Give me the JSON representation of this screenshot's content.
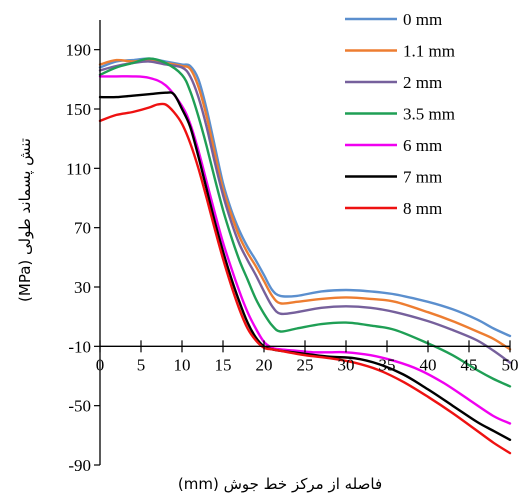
{
  "chart_data": {
    "type": "line",
    "xlabel": "فاصله از مرکز خط جوش (mm)",
    "ylabel": "تنش پسماند طولی (MPa)",
    "xlim": [
      0,
      50
    ],
    "ylim": [
      -90,
      210
    ],
    "x_ticks": [
      0,
      5,
      10,
      15,
      20,
      25,
      30,
      35,
      40,
      45,
      50
    ],
    "x_tick_labels": [
      "0",
      "5",
      "10",
      "15",
      "20",
      "25",
      "30",
      "35",
      "40",
      "45",
      "50"
    ],
    "y_ticks": [
      -90,
      -50,
      -10,
      30,
      70,
      110,
      150,
      190
    ],
    "y_tick_labels": [
      "-90",
      "-50",
      "-10",
      "30",
      "70",
      "110",
      "150",
      "190"
    ],
    "x_axis_crosses_at": -10,
    "grid": false,
    "legend_position": "top-right",
    "series": [
      {
        "name": "0 mm",
        "color": "#5b8fce",
        "x": [
          0,
          2,
          4,
          6,
          8,
          10,
          11,
          12,
          13,
          14,
          15,
          16,
          17,
          18,
          19,
          20,
          21,
          22,
          24,
          27,
          30,
          33,
          36,
          40,
          43,
          46,
          48,
          50
        ],
        "y": [
          178,
          182,
          183,
          184,
          182,
          180,
          179,
          170,
          150,
          125,
          100,
          82,
          68,
          57,
          48,
          38,
          28,
          24,
          24,
          27,
          28,
          27,
          25,
          20,
          15,
          8,
          2,
          -3
        ]
      },
      {
        "name": "1.1 mm",
        "color": "#ed7d31",
        "x": [
          0,
          2,
          4,
          6,
          8,
          10,
          11,
          12,
          13,
          14,
          15,
          16,
          17,
          18,
          19,
          20,
          21,
          22,
          24,
          27,
          30,
          33,
          36,
          40,
          43,
          46,
          48,
          50
        ],
        "y": [
          180,
          183,
          182,
          183,
          181,
          179,
          177,
          165,
          145,
          120,
          96,
          79,
          64,
          53,
          44,
          34,
          24,
          19,
          20,
          22,
          23,
          22,
          20,
          13,
          7,
          0,
          -5,
          -12
        ]
      },
      {
        "name": "2 mm",
        "color": "#76609c",
        "x": [
          0,
          2,
          4,
          6,
          8,
          10,
          11,
          12,
          13,
          14,
          15,
          16,
          17,
          18,
          19,
          20,
          21,
          22,
          24,
          27,
          30,
          33,
          36,
          40,
          43,
          46,
          48,
          50
        ],
        "y": [
          176,
          179,
          181,
          182,
          180,
          178,
          172,
          158,
          138,
          114,
          92,
          74,
          59,
          48,
          38,
          27,
          17,
          12,
          13,
          16,
          17,
          16,
          13,
          7,
          1,
          -6,
          -13,
          -21
        ]
      },
      {
        "name": "3.5 mm",
        "color": "#1f9f55",
        "x": [
          0,
          2,
          4,
          6,
          8,
          10,
          11,
          12,
          13,
          14,
          15,
          16,
          17,
          18,
          19,
          20,
          21,
          22,
          24,
          27,
          30,
          33,
          36,
          40,
          43,
          46,
          48,
          50
        ],
        "y": [
          173,
          178,
          181,
          184,
          181,
          173,
          162,
          145,
          125,
          103,
          82,
          64,
          48,
          35,
          22,
          12,
          4,
          0,
          2,
          5,
          6,
          4,
          1,
          -8,
          -16,
          -26,
          -32,
          -37
        ]
      },
      {
        "name": "6 mm",
        "color": "#f000f0",
        "x": [
          0,
          2,
          4,
          6,
          8,
          10,
          11,
          12,
          13,
          14,
          15,
          16,
          17,
          18,
          19,
          20,
          21,
          22,
          24,
          26,
          28,
          30,
          33,
          36,
          39,
          42,
          45,
          48,
          50
        ],
        "y": [
          172,
          172,
          172,
          171,
          166,
          152,
          140,
          122,
          101,
          80,
          60,
          43,
          27,
          13,
          2,
          -7,
          -11,
          -12,
          -13,
          -14,
          -14,
          -14,
          -16,
          -20,
          -26,
          -35,
          -46,
          -57,
          -62
        ]
      },
      {
        "name": "7 mm",
        "color": "#000000",
        "x": [
          0,
          2,
          4,
          6,
          8,
          9,
          10,
          11,
          12,
          13,
          14,
          15,
          16,
          17,
          18,
          19,
          20,
          21,
          22,
          25,
          28,
          31,
          34,
          37,
          40,
          43,
          46,
          48,
          50
        ],
        "y": [
          158,
          158,
          159,
          160,
          161,
          160,
          150,
          138,
          118,
          96,
          74,
          54,
          36,
          20,
          6,
          -4,
          -10,
          -12,
          -13,
          -15,
          -17,
          -18,
          -22,
          -29,
          -39,
          -50,
          -61,
          -67,
          -73
        ]
      },
      {
        "name": "8 mm",
        "color": "#ee1111",
        "x": [
          0,
          2,
          4,
          6,
          7,
          8,
          9,
          10,
          11,
          12,
          13,
          14,
          15,
          16,
          17,
          18,
          19,
          20,
          21,
          22,
          25,
          28,
          31,
          34,
          37,
          40,
          43,
          46,
          48,
          50
        ],
        "y": [
          142,
          146,
          148,
          151,
          153,
          153,
          148,
          140,
          127,
          110,
          90,
          69,
          49,
          31,
          15,
          2,
          -6,
          -11,
          -12,
          -13,
          -16,
          -18,
          -21,
          -26,
          -34,
          -44,
          -55,
          -67,
          -75,
          -82
        ]
      }
    ]
  }
}
